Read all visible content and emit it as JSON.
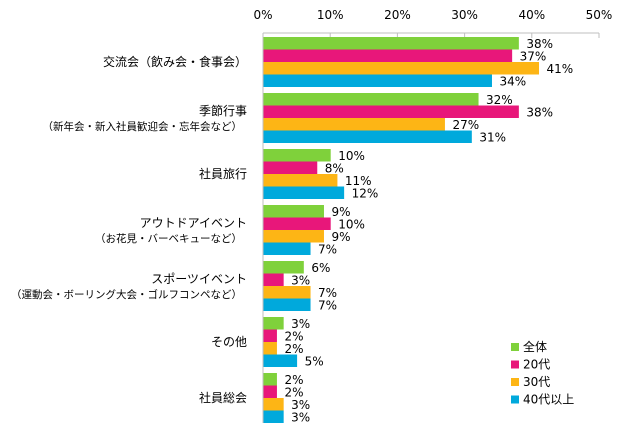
{
  "chart_data": {
    "type": "bar",
    "orientation": "horizontal",
    "title": "",
    "xlabel": "",
    "ylabel": "",
    "xlim": [
      0,
      50
    ],
    "x_ticks": [
      "0%",
      "10%",
      "20%",
      "30%",
      "40%",
      "50%"
    ],
    "categories": [
      "交流会（飲み会・食事会）",
      "季節行事",
      "社員旅行",
      "アウトドアイベント",
      "スポーツイベント",
      "その他",
      "社員総会"
    ],
    "category_sublabels": [
      "",
      "（新年会・新入社員歓迎会・忘年会など）",
      "",
      "（お花見・バーベキューなど）",
      "（運動会・ボーリング大会・ゴルフコンペなど）",
      "",
      ""
    ],
    "series": [
      {
        "name": "全体",
        "color": "#7fd13b",
        "values": [
          38,
          32,
          10,
          9,
          6,
          3,
          2
        ]
      },
      {
        "name": "20代",
        "color": "#e8177a",
        "values": [
          37,
          38,
          8,
          10,
          3,
          2,
          2
        ]
      },
      {
        "name": "30代",
        "color": "#fdb515",
        "values": [
          41,
          27,
          11,
          9,
          7,
          2,
          3
        ]
      },
      {
        "name": "40代以上",
        "color": "#00a9dc",
        "values": [
          34,
          31,
          12,
          7,
          7,
          5,
          3
        ]
      }
    ],
    "value_suffix": "%",
    "legend_position": "bottom-right",
    "grid": false
  }
}
